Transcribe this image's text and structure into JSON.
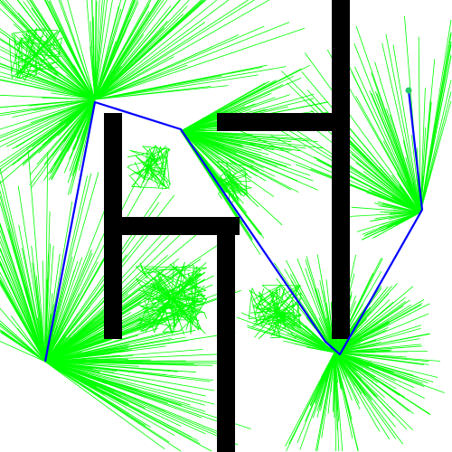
{
  "diagram": {
    "kind": "motion-planning-tree",
    "colors": {
      "background": "#ffffff",
      "obstacle": "#000000",
      "tree_edge": "#00ff00",
      "path": "#0000ff",
      "goal_marker": "#22cc66"
    }
  }
}
